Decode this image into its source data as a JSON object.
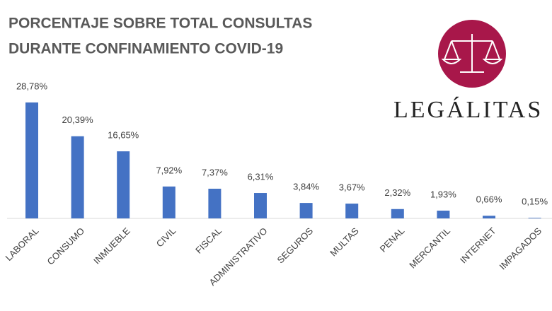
{
  "chart_data": {
    "type": "bar",
    "title": [
      "PORCENTAJE SOBRE TOTAL CONSULTAS",
      "DURANTE CONFINAMIENTO COVID-19"
    ],
    "logo": "LEGÁLITAS",
    "categories": [
      "LABORAL",
      "CONSUMO",
      "INMUEBLE",
      "CIVIL",
      "FISCAL",
      "ADMINISTRATIVO",
      "SEGUROS",
      "MULTAS",
      "PENAL",
      "MERCANTIL",
      "INTERNET",
      "IMPAGADOS"
    ],
    "values": [
      28.78,
      20.39,
      16.65,
      7.92,
      7.37,
      6.31,
      3.84,
      3.67,
      2.32,
      1.93,
      0.66,
      0.15
    ],
    "value_labels": [
      "28,78%",
      "20,39%",
      "16,65%",
      "7,92%",
      "7,37%",
      "6,31%",
      "3,84%",
      "3,67%",
      "2,32%",
      "1,93%",
      "0,66%",
      "0,15%"
    ],
    "color": "#4472c4"
  }
}
